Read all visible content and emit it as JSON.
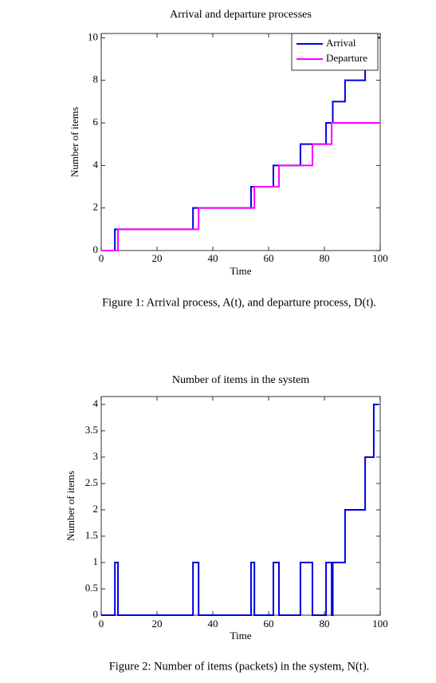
{
  "chart_data": [
    {
      "type": "step",
      "title": "Arrival and departure processes",
      "xlabel": "Time",
      "ylabel": "Number of items",
      "xlim": [
        0,
        100
      ],
      "ylim": [
        0,
        10.2
      ],
      "xticks": [
        0,
        20,
        40,
        60,
        80,
        100
      ],
      "yticks": [
        0,
        2,
        4,
        6,
        8,
        10
      ],
      "legend": "upper right",
      "grid": false,
      "series": [
        {
          "name": "Arrival",
          "color": "#0000e0",
          "x": [
            0,
            4.9,
            32.9,
            53.7,
            61.7,
            71.4,
            80.6,
            83,
            87.4,
            94.6,
            97.7
          ],
          "values": [
            0,
            1,
            2,
            3,
            4,
            5,
            6,
            7,
            8,
            9,
            10
          ]
        },
        {
          "name": "Departure",
          "color": "#ff00ff",
          "x": [
            0,
            6,
            34.9,
            54.9,
            63.7,
            75.7,
            82.6
          ],
          "values": [
            0,
            1,
            2,
            3,
            4,
            5,
            6
          ]
        }
      ],
      "caption": "Figure 1: Arrival process, A(t), and departure process, D(t)."
    },
    {
      "type": "step",
      "title": "Number of items in the system",
      "xlabel": "Time",
      "ylabel": "Number of items",
      "xlim": [
        0,
        100
      ],
      "ylim": [
        0,
        4.15
      ],
      "xticks": [
        0,
        20,
        40,
        60,
        80,
        100
      ],
      "yticks": [
        0,
        0.5,
        1,
        1.5,
        2,
        2.5,
        3,
        3.5,
        4
      ],
      "grid": false,
      "series": [
        {
          "color": "#0000e0",
          "x": [
            0,
            4.9,
            6,
            32.9,
            34.9,
            53.7,
            54.9,
            61.7,
            63.7,
            71.4,
            75.7,
            80.6,
            82.6,
            83,
            87.4,
            94.6,
            97.7,
            99.4
          ],
          "values": [
            0,
            1,
            0,
            1,
            0,
            1,
            0,
            1,
            0,
            1,
            0,
            1,
            0,
            1,
            2,
            3,
            4,
            null
          ]
        }
      ],
      "caption": "Figure 2: Number of items (packets) in the system, N(t)."
    }
  ]
}
